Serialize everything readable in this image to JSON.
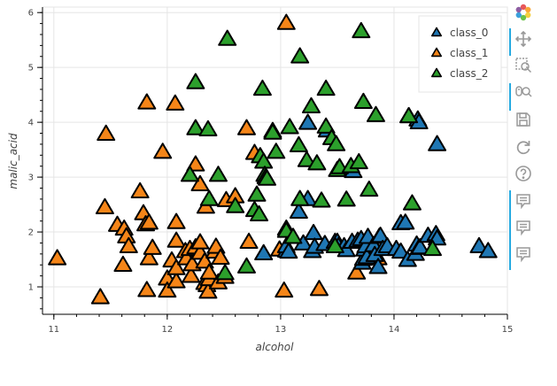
{
  "chart_data": {
    "type": "scatter",
    "marker": "triangle",
    "title": "",
    "xlabel": "alcohol",
    "ylabel": "malic_acid",
    "xlim": [
      10.9,
      15.0
    ],
    "ylim": [
      0.5,
      6.1
    ],
    "xticks": [
      "11",
      "12",
      "13",
      "14",
      "15"
    ],
    "yticks": [
      "1",
      "2",
      "3",
      "4",
      "5",
      "6"
    ],
    "legend_position": "top-right",
    "series": [
      {
        "name": "class_1",
        "color": "#f58518",
        "x": [
          11.03,
          11.41,
          11.45,
          11.46,
          11.56,
          11.61,
          11.62,
          11.64,
          11.66,
          11.76,
          11.79,
          11.81,
          11.82,
          11.82,
          11.84,
          11.84,
          11.87,
          11.96,
          12.0,
          12.0,
          12.04,
          12.07,
          12.08,
          12.08,
          12.08,
          12.08,
          12.16,
          12.17,
          12.2,
          12.21,
          12.22,
          12.25,
          12.25,
          12.29,
          12.29,
          12.29,
          12.33,
          12.33,
          12.34,
          12.35,
          12.36,
          12.37,
          12.37,
          12.42,
          12.43,
          12.45,
          12.47,
          12.51,
          12.52,
          12.6,
          12.7,
          12.72,
          12.77,
          12.85,
          12.99,
          13.03,
          13.05,
          13.34,
          13.67,
          13.86
        ],
        "y": [
          1.51,
          0.8,
          2.44,
          3.78,
          2.12,
          1.39,
          2.05,
          1.91,
          1.73,
          2.73,
          2.33,
          2.13,
          4.35,
          0.93,
          1.51,
          2.16,
          1.7,
          3.45,
          1.14,
          0.92,
          1.47,
          4.33,
          1.09,
          1.33,
          1.83,
          2.17,
          1.64,
          1.51,
          1.68,
          1.19,
          1.4,
          1.71,
          3.22,
          2.86,
          1.61,
          1.8,
          1.06,
          1.45,
          2.45,
          1.02,
          0.9,
          1.13,
          1.25,
          1.63,
          1.72,
          1.07,
          1.52,
          1.17,
          2.57,
          2.64,
          3.88,
          1.81,
          3.43,
          1.6,
          1.67,
          0.92,
          5.8,
          0.95,
          1.25,
          1.51
        ]
      },
      {
        "name": "class_0",
        "color": "#1f77b4",
        "x": [
          12.85,
          12.93,
          13.05,
          13.05,
          13.05,
          13.07,
          13.16,
          13.2,
          13.24,
          13.24,
          13.28,
          13.29,
          13.3,
          13.39,
          13.41,
          13.48,
          13.5,
          13.51,
          13.56,
          13.58,
          13.63,
          13.64,
          13.68,
          13.71,
          13.72,
          13.73,
          13.74,
          13.75,
          13.76,
          13.77,
          13.82,
          13.83,
          13.86,
          13.87,
          13.88,
          13.9,
          13.94,
          14.02,
          14.06,
          14.06,
          14.1,
          14.12,
          14.13,
          14.19,
          14.2,
          14.21,
          14.22,
          14.22,
          14.23,
          14.3,
          14.37,
          14.38,
          14.38,
          14.75,
          14.83
        ],
        "y": [
          1.6,
          3.83,
          1.65,
          1.73,
          2.05,
          1.63,
          2.36,
          1.78,
          2.59,
          3.98,
          1.64,
          1.97,
          1.72,
          1.77,
          3.84,
          1.81,
          1.81,
          1.73,
          1.73,
          1.66,
          1.81,
          3.1,
          1.83,
          1.86,
          1.43,
          1.5,
          1.67,
          1.73,
          1.53,
          1.9,
          1.75,
          1.57,
          1.35,
          1.9,
          1.92,
          1.68,
          1.73,
          1.68,
          1.63,
          2.15,
          2.16,
          1.48,
          4.1,
          1.59,
          1.76,
          4.04,
          1.7,
          3.99,
          1.71,
          1.92,
          1.95,
          1.87,
          3.59,
          1.73,
          1.64
        ]
      },
      {
        "name": "class_2",
        "color": "#2ca02c",
        "x": [
          12.2,
          12.25,
          12.25,
          12.36,
          12.37,
          12.45,
          12.51,
          12.53,
          12.6,
          12.7,
          12.77,
          12.79,
          12.81,
          12.82,
          12.84,
          12.85,
          12.86,
          12.87,
          12.88,
          12.93,
          12.96,
          13.05,
          13.08,
          13.11,
          13.16,
          13.17,
          13.17,
          13.23,
          13.27,
          13.32,
          13.36,
          13.4,
          13.4,
          13.45,
          13.48,
          13.49,
          13.5,
          13.52,
          13.58,
          13.62,
          13.69,
          13.71,
          13.73,
          13.78,
          13.84,
          14.13,
          14.16,
          14.34
        ],
        "y": [
          3.03,
          3.88,
          4.72,
          3.86,
          2.59,
          3.03,
          1.24,
          5.51,
          2.46,
          1.36,
          2.39,
          2.67,
          2.31,
          3.37,
          4.6,
          3.27,
          3.03,
          2.99,
          2.96,
          3.8,
          3.45,
          2.01,
          3.9,
          1.9,
          3.57,
          2.59,
          5.19,
          3.3,
          4.28,
          3.24,
          2.56,
          3.91,
          4.6,
          3.7,
          1.73,
          3.59,
          3.12,
          3.17,
          2.58,
          3.19,
          3.26,
          5.65,
          4.36,
          2.76,
          4.12,
          4.1,
          2.51,
          1.68
        ]
      }
    ]
  },
  "toolbar": {
    "tools": [
      "bokeh-logo-icon",
      "pan-icon",
      "box-zoom-icon",
      "wheel-zoom-icon",
      "save-icon",
      "reset-icon",
      "help-icon",
      "hover-icon",
      "hover-icon",
      "hover-icon"
    ]
  }
}
